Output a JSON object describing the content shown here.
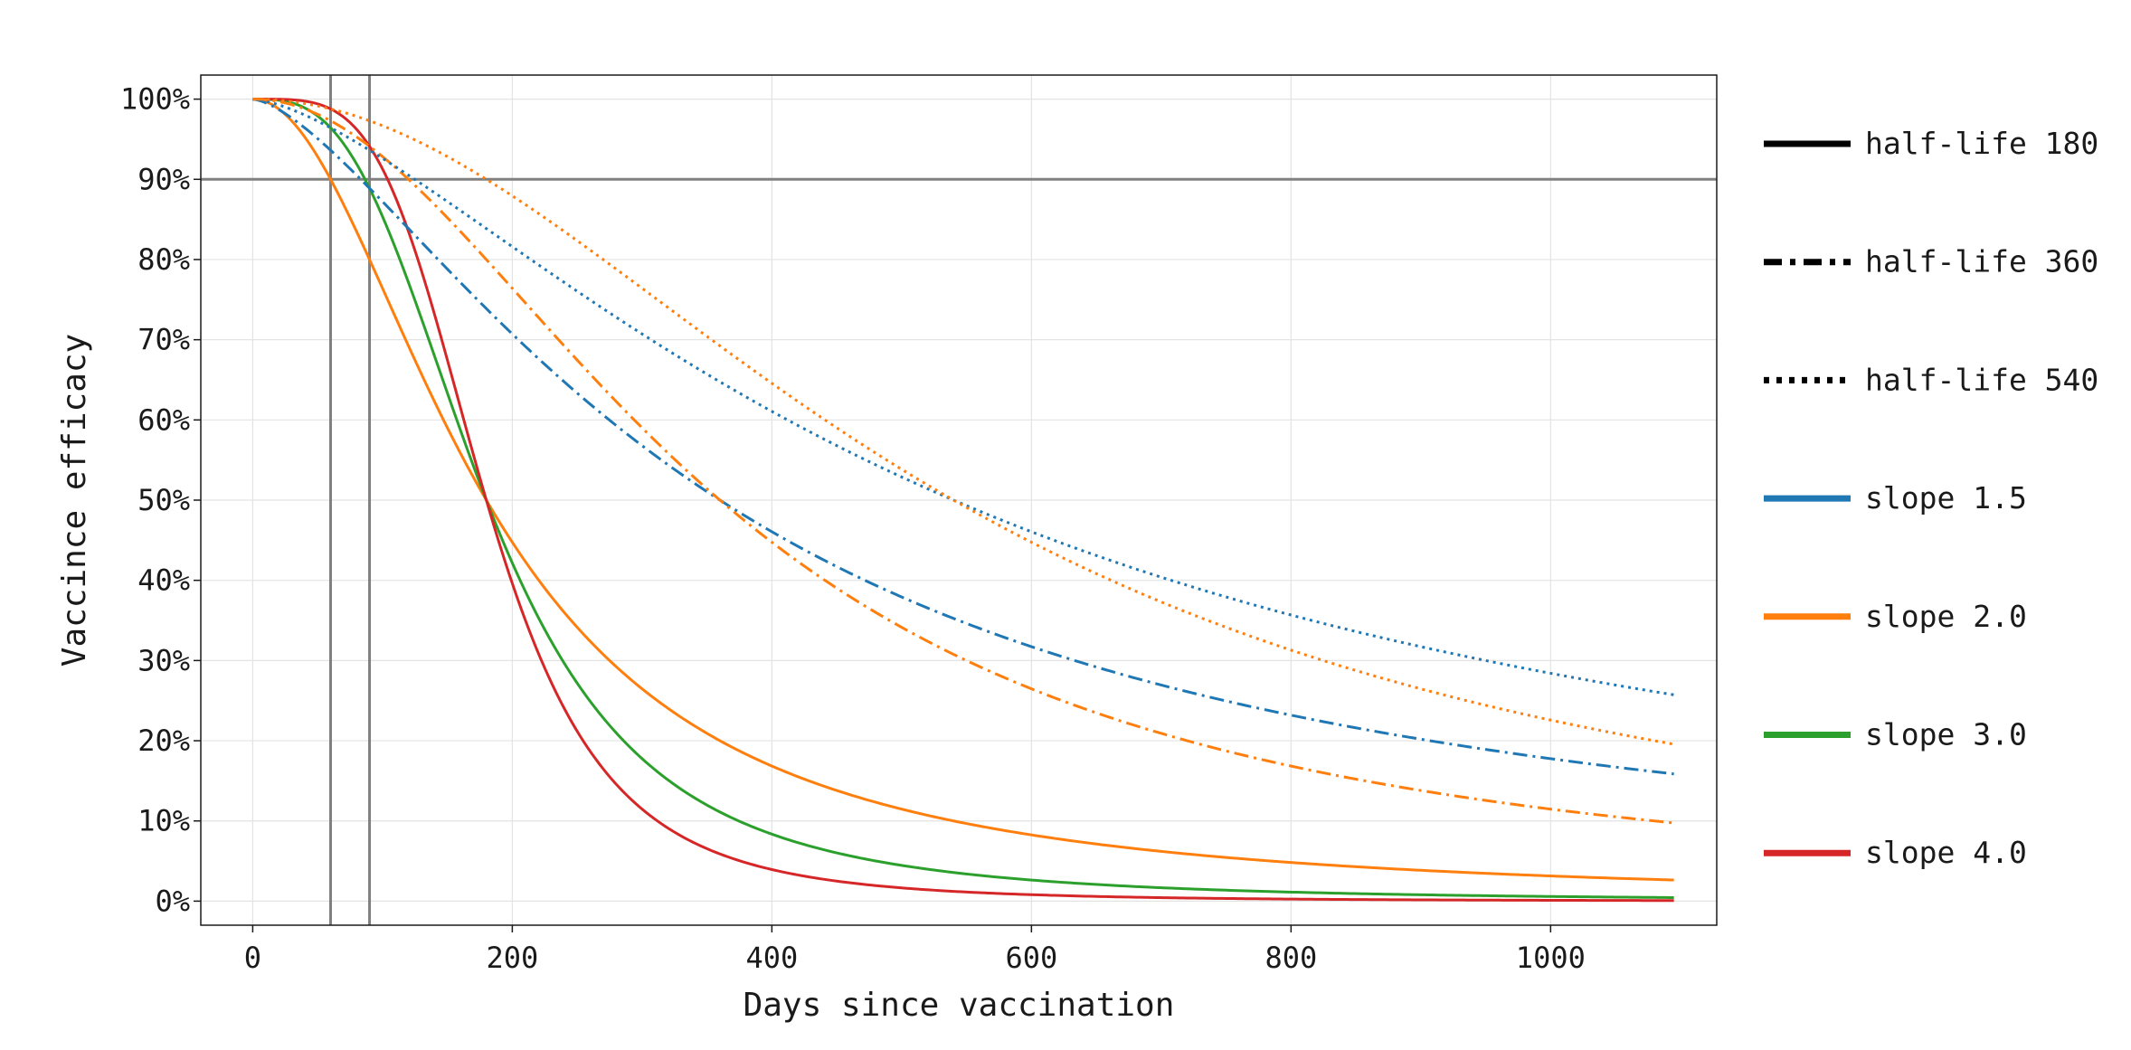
{
  "chart_data": {
    "type": "line",
    "title": "",
    "xlabel": "Days since vaccination",
    "ylabel": "Vaccince efficacy",
    "xlim": [
      -40,
      1128
    ],
    "ylim": [
      -0.03,
      1.03
    ],
    "xticks": [
      0,
      200,
      400,
      600,
      800,
      1000
    ],
    "xtick_labels": [
      "0",
      "200",
      "400",
      "600",
      "800",
      "1000"
    ],
    "yticks": [
      0,
      0.1,
      0.2,
      0.3,
      0.4,
      0.5,
      0.6,
      0.7,
      0.8,
      0.9,
      1.0
    ],
    "ytick_labels": [
      "0%",
      "10%",
      "20%",
      "30%",
      "40%",
      "50%",
      "60%",
      "70%",
      "80%",
      "90%",
      "100%"
    ],
    "grid": true,
    "legend_position": "outside-right",
    "reference_lines": {
      "horizontal_y": [
        0.9
      ],
      "vertical_x": [
        60,
        90
      ],
      "color": "#808080"
    },
    "model": "efficacy = 1 / (1 + (t / half_life)^slope)",
    "x_range": [
      0,
      1095
    ],
    "half_lives": [
      {
        "value": 180,
        "label": "half-life 180",
        "dash": "solid"
      },
      {
        "value": 360,
        "label": "half-life 360",
        "dash": "dashdot"
      },
      {
        "value": 540,
        "label": "half-life 540",
        "dash": "dotted"
      }
    ],
    "slopes": [
      {
        "value": 1.5,
        "label": "slope 1.5",
        "color": "#1f77b4"
      },
      {
        "value": 2.0,
        "label": "slope 2.0",
        "color": "#ff7f0e"
      },
      {
        "value": 3.0,
        "label": "slope 3.0",
        "color": "#2ca02c"
      },
      {
        "value": 4.0,
        "label": "slope 4.0",
        "color": "#d62728"
      }
    ],
    "series": [
      {
        "half_life": 180,
        "slope": 2.0,
        "color": "#ff7f0e",
        "dash": "solid"
      },
      {
        "half_life": 180,
        "slope": 3.0,
        "color": "#2ca02c",
        "dash": "solid"
      },
      {
        "half_life": 180,
        "slope": 4.0,
        "color": "#d62728",
        "dash": "solid"
      },
      {
        "half_life": 360,
        "slope": 1.5,
        "color": "#1f77b4",
        "dash": "dashdot"
      },
      {
        "half_life": 360,
        "slope": 2.0,
        "color": "#ff7f0e",
        "dash": "dashdot"
      },
      {
        "half_life": 540,
        "slope": 1.5,
        "color": "#1f77b4",
        "dash": "dotted"
      },
      {
        "half_life": 540,
        "slope": 2.0,
        "color": "#ff7f0e",
        "dash": "dotted"
      }
    ]
  }
}
